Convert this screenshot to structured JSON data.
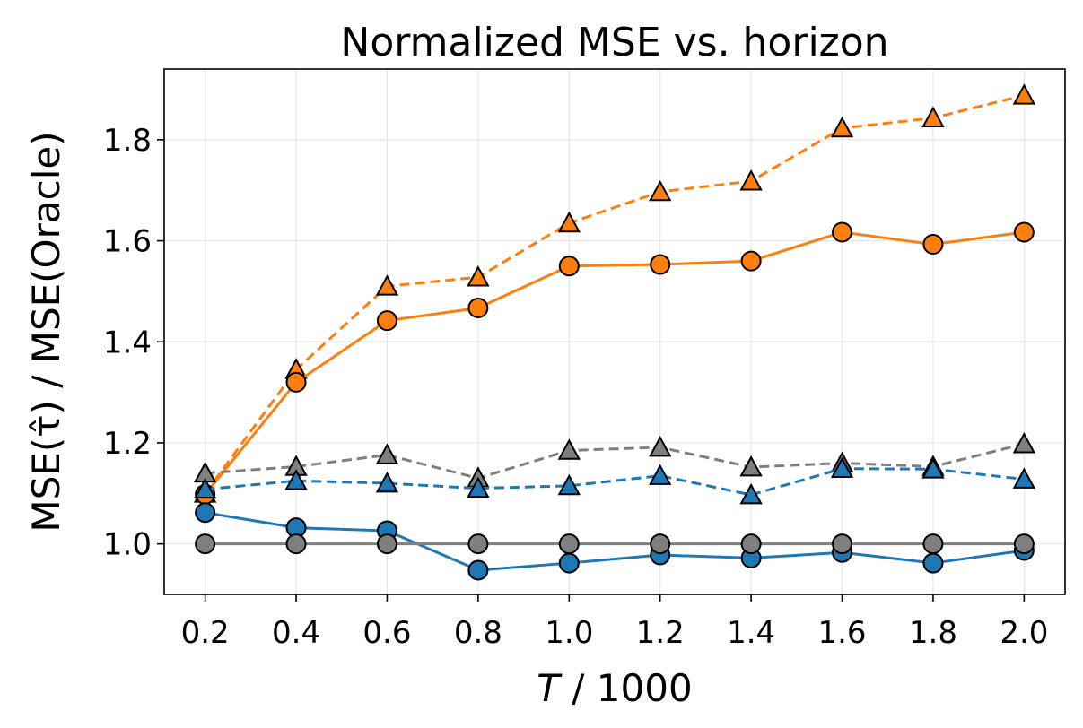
{
  "chart_data": {
    "type": "line",
    "title": "Normalized MSE vs. horizon",
    "xlabel_var": "T",
    "xlabel_rest": " / 1000",
    "ylabel": "MSE(τ̂) / MSE(Oracle)",
    "x": [
      0.2,
      0.4,
      0.6,
      0.8,
      1.0,
      1.2,
      1.4,
      1.6,
      1.8,
      2.0
    ],
    "x_tick_labels": [
      "0.2",
      "0.4",
      "0.6",
      "0.8",
      "1.0",
      "1.2",
      "1.4",
      "1.6",
      "1.8",
      "2.0"
    ],
    "y_ticks": [
      1.0,
      1.2,
      1.4,
      1.6,
      1.8
    ],
    "y_tick_labels": [
      "1.0",
      "1.2",
      "1.4",
      "1.6",
      "1.8"
    ],
    "xlim": [
      0.11,
      2.09
    ],
    "ylim": [
      0.9,
      1.94
    ],
    "grid": true,
    "series": [
      {
        "color": "#ff7f0e",
        "linestyle": "dashed",
        "marker": "triangle",
        "values": [
          1.1,
          1.345,
          1.51,
          1.528,
          1.635,
          1.697,
          1.718,
          1.823,
          1.843,
          1.888
        ]
      },
      {
        "color": "#ff7f0e",
        "linestyle": "solid",
        "marker": "circle",
        "values": [
          1.098,
          1.32,
          1.442,
          1.467,
          1.55,
          1.553,
          1.56,
          1.617,
          1.593,
          1.617
        ]
      },
      {
        "color": "#7f7f7f",
        "linestyle": "dashed",
        "marker": "triangle",
        "values": [
          1.14,
          1.153,
          1.176,
          1.13,
          1.185,
          1.191,
          1.152,
          1.16,
          1.153,
          1.198
        ]
      },
      {
        "color": "#1f77b4",
        "linestyle": "dashed",
        "marker": "triangle",
        "values": [
          1.108,
          1.125,
          1.12,
          1.11,
          1.115,
          1.135,
          1.097,
          1.149,
          1.148,
          1.128
        ]
      },
      {
        "color": "#1f77b4",
        "linestyle": "solid",
        "marker": "circle",
        "values": [
          1.062,
          1.032,
          1.026,
          0.948,
          0.962,
          0.978,
          0.972,
          0.983,
          0.962,
          0.987
        ]
      },
      {
        "color": "#7f7f7f",
        "linestyle": "solid",
        "marker": "circle",
        "values": [
          1.0,
          1.0,
          1.0,
          1.0,
          1.0,
          1.0,
          1.0,
          1.0,
          1.0,
          1.0
        ]
      }
    ]
  }
}
